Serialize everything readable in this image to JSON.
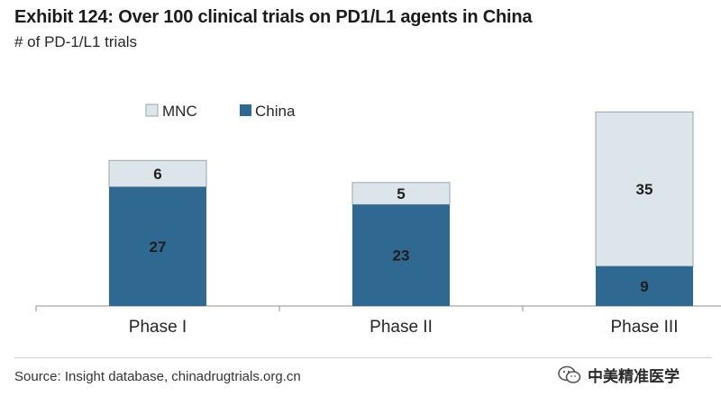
{
  "title": "Exhibit 124: Over 100 clinical trials on PD1/L1 agents in China",
  "subtitle": "# of PD-1/L1 trials",
  "source": "Source: Insight database, chinadrugtrials.org.cn",
  "watermark": {
    "text": "中美精准医学",
    "icon": "wechat-icon"
  },
  "colors": {
    "china": "#2f6890",
    "mnc": "#dce6ea",
    "outline": "#9aa4aa",
    "axis": "#8f8f8f"
  },
  "chart_data": {
    "type": "bar",
    "stacked": true,
    "categories": [
      "Phase I",
      "Phase II",
      "Phase III"
    ],
    "series": [
      {
        "name": "China",
        "values": [
          27,
          23,
          9
        ]
      },
      {
        "name": "MNC",
        "values": [
          6,
          5,
          35
        ]
      }
    ],
    "legend": [
      "MNC",
      "China"
    ],
    "legend_position": "top-left",
    "ylim": [
      0,
      44
    ],
    "grid": false,
    "data_labels": true,
    "xlabel": "",
    "ylabel": ""
  }
}
